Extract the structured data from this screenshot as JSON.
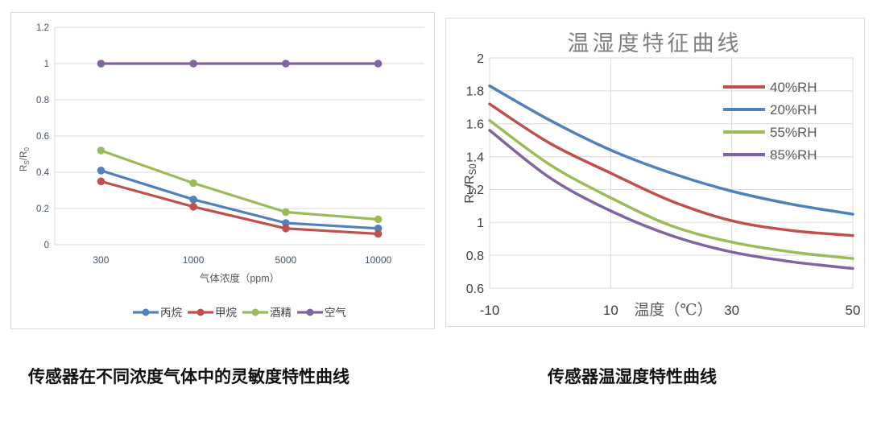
{
  "captions": {
    "left": "传感器在不同浓度气体中的灵敏度特性曲线",
    "right": "传感器温湿度特性曲线"
  },
  "colors": {
    "blue": "#4F81BD",
    "red": "#C0504D",
    "green": "#9BBB59",
    "purple": "#8064A2",
    "gridline": "#D9D9D9",
    "left_tick_text": "#44546A",
    "right_tick_text": "#404040",
    "axis_label_text": "#595959",
    "title_text": "#7F7F7F"
  },
  "chart_data": [
    {
      "id": "gas-sensitivity",
      "type": "line",
      "title": "",
      "xlabel": "气体浓度（ppm）",
      "ylabel": "RS/R0",
      "ylabel_parts": [
        {
          "t": "R",
          "sub": false
        },
        {
          "t": "S",
          "sub": true
        },
        {
          "t": "/R",
          "sub": false
        },
        {
          "t": "0",
          "sub": true
        }
      ],
      "categories": [
        "300",
        "1000",
        "5000",
        "10000"
      ],
      "ylim": [
        0,
        1.2
      ],
      "yticks": [
        1.2,
        1,
        0.8,
        0.6,
        0.4,
        0.2,
        0
      ],
      "ytick_labels": [
        "1.2",
        "1",
        "0.8",
        "0.6",
        "0.4",
        "0.2",
        "0"
      ],
      "grid": "horizontal",
      "legend_position": "bottom",
      "markers": true,
      "smooth": false,
      "series": [
        {
          "name": "丙烷",
          "color": "#4F81BD",
          "values": [
            0.41,
            0.25,
            0.12,
            0.09
          ]
        },
        {
          "name": "甲烷",
          "color": "#C0504D",
          "values": [
            0.35,
            0.21,
            0.09,
            0.06
          ]
        },
        {
          "name": "酒精",
          "color": "#9BBB59",
          "values": [
            0.52,
            0.34,
            0.18,
            0.14
          ]
        },
        {
          "name": "空气",
          "color": "#8064A2",
          "values": [
            1,
            1,
            1,
            1
          ]
        }
      ]
    },
    {
      "id": "temp-humidity",
      "type": "line",
      "title": "温湿度特征曲线",
      "xlabel": "温度（℃）",
      "ylabel": "RS/RS0",
      "ylabel_parts": [
        {
          "t": "R",
          "sub": false
        },
        {
          "t": "S",
          "sub": true
        },
        {
          "t": "/R",
          "sub": false
        },
        {
          "t": "S0",
          "sub": true
        }
      ],
      "x": [
        -10,
        0,
        10,
        20,
        30,
        40,
        50
      ],
      "xlim": [
        -10,
        50
      ],
      "xticks": [
        -10,
        10,
        30,
        50
      ],
      "xtick_labels": [
        "-10",
        "10",
        "30",
        "50"
      ],
      "ylim": [
        0.6,
        2
      ],
      "yticks": [
        2,
        1.8,
        1.6,
        1.4,
        1.2,
        1,
        0.8,
        0.6
      ],
      "ytick_labels": [
        "2",
        "1.8",
        "1.6",
        "1.4",
        "1.2",
        "1",
        "0.8",
        "0.6"
      ],
      "grid": "both",
      "legend_position": "top-right",
      "markers": false,
      "smooth": true,
      "series": [
        {
          "name": "40%RH",
          "color": "#C0504D",
          "values": [
            1.72,
            1.48,
            1.3,
            1.13,
            1.01,
            0.95,
            0.92
          ]
        },
        {
          "name": "20%RH",
          "color": "#4F81BD",
          "values": [
            1.83,
            1.62,
            1.44,
            1.3,
            1.19,
            1.11,
            1.05
          ]
        },
        {
          "name": "55%RH",
          "color": "#9BBB59",
          "values": [
            1.62,
            1.35,
            1.15,
            0.98,
            0.88,
            0.82,
            0.78
          ]
        },
        {
          "name": "85%RH",
          "color": "#8064A2",
          "values": [
            1.56,
            1.27,
            1.07,
            0.92,
            0.82,
            0.76,
            0.72
          ]
        }
      ]
    }
  ]
}
